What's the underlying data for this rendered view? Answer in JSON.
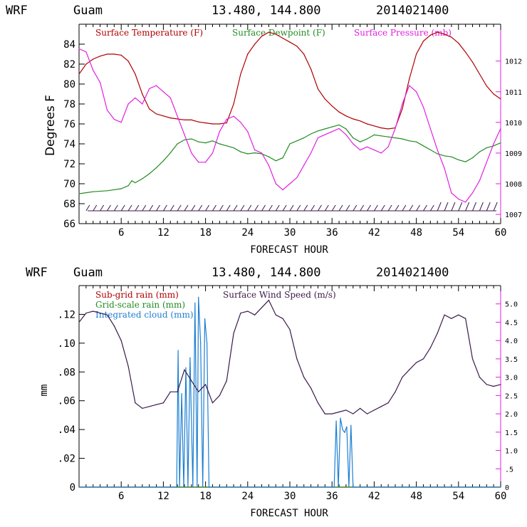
{
  "chart_data": [
    {
      "type": "line",
      "header": {
        "model": "WRF",
        "location": "Guam",
        "coords": "13.480, 144.800",
        "init": "2014021400"
      },
      "xlabel": "FORECAST HOUR",
      "ylabel": "Degrees F",
      "xlim": [
        0,
        60
      ],
      "ylim": [
        66,
        86
      ],
      "y2lim": [
        1006.7,
        1013.2
      ],
      "x_ticks": [
        "6",
        "12",
        "18",
        "24",
        "30",
        "36",
        "42",
        "48",
        "54",
        "60"
      ],
      "y_ticks": [
        "66",
        "68",
        "70",
        "72",
        "74",
        "76",
        "78",
        "80",
        "82",
        "84"
      ],
      "y2_ticks": [
        "1007",
        "1008",
        "1009",
        "1010",
        "1011",
        "1012"
      ],
      "colors": {
        "temp": "#b00000",
        "dew": "#228b22",
        "pressure": "#e020e0",
        "wind": "#3a1a4a",
        "axis_right": "#e020e0"
      },
      "series": [
        {
          "name": "Surface Temperature (F)",
          "axis": "left",
          "x": [
            0,
            1,
            2,
            3,
            4,
            5,
            6,
            7,
            8,
            9,
            10,
            11,
            12,
            13,
            14,
            15,
            16,
            17,
            18,
            19,
            20,
            21,
            22,
            23,
            24,
            25,
            26,
            27,
            28,
            29,
            30,
            31,
            32,
            33,
            34,
            35,
            36,
            37,
            38,
            39,
            40,
            41,
            42,
            43,
            44,
            45,
            46,
            47,
            48,
            49,
            50,
            51,
            52,
            53,
            54,
            55,
            56,
            57,
            58,
            59,
            60
          ],
          "values": [
            81.0,
            82.0,
            82.5,
            82.8,
            83.0,
            83.0,
            82.9,
            82.3,
            81.0,
            79.0,
            77.5,
            77.0,
            76.8,
            76.6,
            76.5,
            76.4,
            76.4,
            76.2,
            76.1,
            76.0,
            76.0,
            76.1,
            78.0,
            81.0,
            83.0,
            84.0,
            84.8,
            85.2,
            85.0,
            84.6,
            84.2,
            83.8,
            83.0,
            81.5,
            79.5,
            78.5,
            77.8,
            77.2,
            76.8,
            76.5,
            76.3,
            76.0,
            75.8,
            75.6,
            75.5,
            75.6,
            77.5,
            80.5,
            83.0,
            84.3,
            84.9,
            85.2,
            85.0,
            84.7,
            84.1,
            83.2,
            82.2,
            81.0,
            79.8,
            79.0,
            78.5
          ]
        },
        {
          "name": "Surface Dewpoint (F)",
          "axis": "left",
          "x": [
            0,
            2,
            4,
            6,
            7,
            7.5,
            8,
            9,
            10,
            11,
            12,
            13,
            14,
            15,
            16,
            17,
            18,
            19,
            20,
            21,
            22,
            23,
            24,
            25,
            26,
            27,
            28,
            29,
            30,
            31,
            32,
            33,
            34,
            35,
            36,
            37,
            38,
            39,
            40,
            41,
            42,
            43,
            44,
            45,
            46,
            47,
            48,
            49,
            50,
            51,
            52,
            53,
            54,
            55,
            56,
            57,
            58,
            59,
            60
          ],
          "values": [
            69.0,
            69.2,
            69.3,
            69.5,
            69.8,
            70.3,
            70.1,
            70.5,
            71.0,
            71.6,
            72.3,
            73.1,
            74.0,
            74.4,
            74.5,
            74.2,
            74.1,
            74.3,
            74.0,
            73.8,
            73.6,
            73.2,
            73.0,
            73.1,
            73.0,
            72.7,
            72.3,
            72.6,
            74.0,
            74.3,
            74.6,
            75.0,
            75.3,
            75.5,
            75.7,
            75.9,
            75.5,
            74.6,
            74.2,
            74.5,
            74.9,
            74.8,
            74.7,
            74.6,
            74.5,
            74.3,
            74.2,
            73.8,
            73.4,
            73.0,
            72.8,
            72.7,
            72.4,
            72.2,
            72.6,
            73.2,
            73.6,
            73.8,
            74.1
          ]
        },
        {
          "name": "Surface Pressure (mb)",
          "axis": "right",
          "x": [
            0,
            1,
            2,
            3,
            4,
            5,
            6,
            7,
            8,
            9,
            10,
            11,
            12,
            13,
            14,
            15,
            16,
            17,
            18,
            19,
            20,
            21,
            22,
            23,
            24,
            25,
            26,
            27,
            28,
            29,
            30,
            31,
            32,
            33,
            34,
            35,
            36,
            37,
            38,
            39,
            40,
            41,
            42,
            43,
            44,
            45,
            46,
            47,
            48,
            49,
            50,
            51,
            52,
            53,
            54,
            55,
            56,
            57,
            58,
            59,
            60
          ],
          "values": [
            1012.4,
            1012.3,
            1011.7,
            1011.3,
            1010.4,
            1010.1,
            1010.0,
            1010.6,
            1010.8,
            1010.6,
            1011.1,
            1011.2,
            1011.0,
            1010.8,
            1010.2,
            1009.6,
            1009.0,
            1008.7,
            1008.7,
            1009.0,
            1009.7,
            1010.1,
            1010.2,
            1010.0,
            1009.7,
            1009.1,
            1009.0,
            1008.6,
            1008.0,
            1007.8,
            1008.0,
            1008.2,
            1008.6,
            1009.0,
            1009.5,
            1009.6,
            1009.7,
            1009.8,
            1009.6,
            1009.3,
            1009.1,
            1009.2,
            1009.1,
            1009.0,
            1009.2,
            1009.8,
            1010.6,
            1011.2,
            1011.0,
            1010.5,
            1009.8,
            1009.1,
            1008.5,
            1007.7,
            1007.5,
            1007.4,
            1007.7,
            1008.1,
            1008.7,
            1009.3,
            1009.8
          ]
        }
      ]
    },
    {
      "type": "line",
      "header": {
        "model": "WRF",
        "location": "Guam",
        "coords": "13.480, 144.800",
        "init": "2014021400"
      },
      "xlabel": "FORECAST HOUR",
      "ylabel": "mm",
      "xlim": [
        0,
        60
      ],
      "ylim": [
        0,
        0.14
      ],
      "y2lim": [
        0,
        5.5
      ],
      "x_ticks": [
        "6",
        "12",
        "18",
        "24",
        "30",
        "36",
        "42",
        "48",
        "54",
        "60"
      ],
      "y_ticks": [
        "0",
        ".02",
        ".04",
        ".06",
        ".08",
        ".10",
        ".12"
      ],
      "y2_ticks": [
        "0",
        ".5",
        "1.0",
        "1.5",
        "2.0",
        "2.5",
        "3.0",
        "3.5",
        "4.0",
        "4.5",
        "5.0"
      ],
      "colors": {
        "subgrid": "#b00000",
        "grid": "#228b22",
        "cloud": "#1e7fd0",
        "wind": "#3a1a4a"
      },
      "series": [
        {
          "name": "Sub-grid rain (mm)",
          "axis": "left",
          "x": [
            0,
            60
          ],
          "values": [
            0,
            0
          ]
        },
        {
          "name": "Grid-scale rain (mm)",
          "axis": "left",
          "x": [
            0,
            60
          ],
          "values": [
            0,
            0
          ]
        },
        {
          "name": "Integrated cloud (mm)",
          "axis": "left",
          "x": [
            0,
            13.9,
            14.1,
            14.3,
            14.6,
            14.9,
            15.2,
            15.5,
            15.8,
            16.2,
            16.5,
            16.8,
            17.0,
            17.3,
            17.6,
            17.9,
            18.2,
            18.5,
            36.3,
            36.6,
            36.9,
            37.2,
            37.5,
            37.8,
            38.1,
            38.4,
            38.7,
            39.0,
            39.3,
            60
          ],
          "values": [
            0,
            0,
            0.095,
            0,
            0.065,
            0,
            0.083,
            0,
            0.09,
            0,
            0.128,
            0,
            0.132,
            0.1,
            0,
            0.117,
            0.1,
            0,
            0,
            0.046,
            0,
            0.048,
            0.04,
            0.038,
            0.042,
            0,
            0.043,
            0,
            0,
            0
          ]
        },
        {
          "name": "Surface Wind Speed (m/s)",
          "axis": "right",
          "x": [
            0,
            1,
            2,
            3,
            4,
            5,
            6,
            7,
            8,
            9,
            10,
            11,
            12,
            13,
            14,
            15,
            16,
            17,
            18,
            19,
            20,
            21,
            22,
            23,
            24,
            25,
            26,
            27,
            28,
            29,
            30,
            31,
            32,
            33,
            34,
            35,
            36,
            37,
            38,
            39,
            40,
            41,
            42,
            43,
            44,
            45,
            46,
            47,
            48,
            49,
            50,
            51,
            52,
            53,
            54,
            55,
            56,
            57,
            58,
            59,
            60
          ],
          "values": [
            4.5,
            4.75,
            4.8,
            4.75,
            4.7,
            4.4,
            4.0,
            3.3,
            2.3,
            2.15,
            2.2,
            2.25,
            2.3,
            2.6,
            2.6,
            3.2,
            2.9,
            2.6,
            2.8,
            2.3,
            2.5,
            2.9,
            4.2,
            4.75,
            4.8,
            4.7,
            4.9,
            5.1,
            4.7,
            4.6,
            4.3,
            3.5,
            3.0,
            2.7,
            2.3,
            2.0,
            2.0,
            2.05,
            2.1,
            2.0,
            2.15,
            2.0,
            2.1,
            2.2,
            2.3,
            2.6,
            3.0,
            3.2,
            3.4,
            3.5,
            3.8,
            4.2,
            4.7,
            4.6,
            4.7,
            4.6,
            3.5,
            3.0,
            2.8,
            2.75,
            2.8
          ]
        }
      ]
    }
  ]
}
